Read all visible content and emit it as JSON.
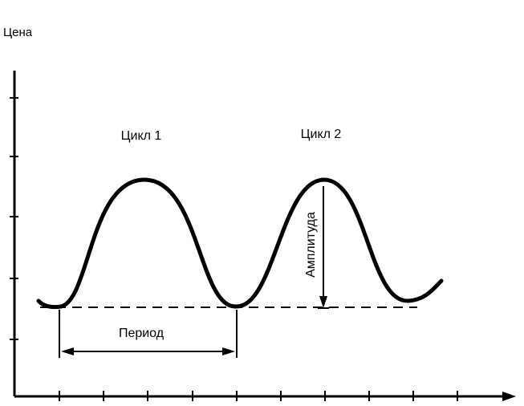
{
  "y_axis_label": "Цена",
  "cycles": [
    {
      "label": "Цикл 1"
    },
    {
      "label": "Цикл 2"
    }
  ],
  "period_label": "Период",
  "amplitude_label": "Амплитуда",
  "colors": {
    "ink": "#000000",
    "background": "#ffffff"
  }
}
